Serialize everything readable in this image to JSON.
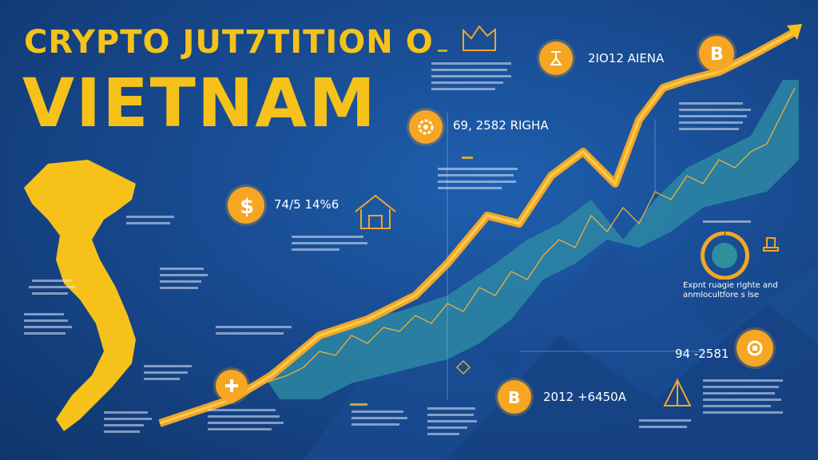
{
  "title_line1": "CRYPTO JUT7TITION O",
  "title_line2": "VIETNAM",
  "stats": {
    "top_right": "2IO12 AIENA",
    "mid_left": "69, 2582 RIGHA",
    "dollar": "74/5 14%6",
    "right_mid": "94 -2581",
    "bottom": "2012 +6450A"
  },
  "right_heading": "Expnt ruagie righte and\nanmlocultfore s lse",
  "colors": {
    "background": "#184a90",
    "accent_yellow": "#f6c21a",
    "accent_orange": "#f6a623",
    "teal": "#3fa5b5"
  },
  "icons": [
    "bitcoin-icon",
    "dollar-icon",
    "plus-icon",
    "chart-icon",
    "shield-icon",
    "gear-icon"
  ]
}
